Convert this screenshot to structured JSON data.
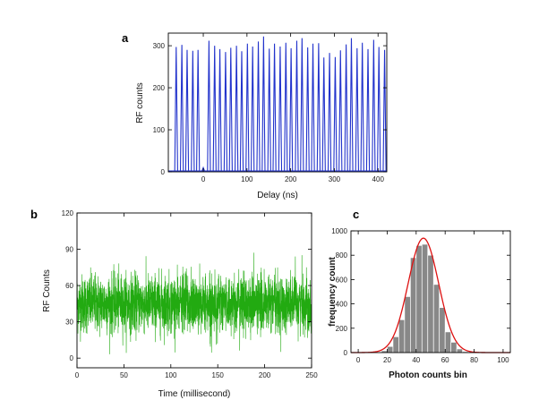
{
  "chart_data": [
    {
      "panel_label": "a",
      "type": "line",
      "xlabel": "Delay (ns)",
      "ylabel": "RF counts",
      "xlim": [
        -80,
        420
      ],
      "ylim": [
        0,
        330
      ],
      "xticks": [
        0,
        100,
        200,
        300,
        400
      ],
      "yticks": [
        0,
        100,
        200,
        300
      ],
      "series": [
        {
          "color": "#2233cc",
          "peak_x": [
            -62,
            -49,
            -37,
            -24,
            -12,
            13,
            26,
            38,
            51,
            63,
            76,
            88,
            101,
            113,
            126,
            138,
            151,
            163,
            176,
            189,
            201,
            214,
            226,
            239,
            251,
            264,
            276,
            289,
            302,
            314,
            327,
            339,
            352,
            364,
            377,
            390,
            402,
            415
          ],
          "peak_y": [
            297,
            302,
            290,
            288,
            290,
            312,
            300,
            292,
            285,
            295,
            300,
            287,
            305,
            298,
            310,
            322,
            293,
            305,
            298,
            307,
            294,
            312,
            318,
            296,
            305,
            306,
            272,
            283,
            273,
            289,
            303,
            318,
            294,
            307,
            292,
            314,
            297,
            290
          ],
          "central_peak_x": 0,
          "central_peak_y": 10
        }
      ]
    },
    {
      "panel_label": "b",
      "type": "line",
      "xlabel": "Time (millisecond)",
      "ylabel": "RF Counts",
      "xlim": [
        0,
        250
      ],
      "ylim": [
        -8,
        120
      ],
      "xticks": [
        0,
        50,
        100,
        150,
        200,
        250
      ],
      "yticks": [
        0,
        30,
        60,
        90,
        120
      ],
      "series": [
        {
          "color": "#22aa11",
          "mean": 45,
          "std": 12,
          "min": 3,
          "max": 93,
          "n_points": 2500
        }
      ]
    },
    {
      "panel_label": "c",
      "type": "bar",
      "xlabel": "Photon counts bin",
      "ylabel": "frequency count",
      "xlim": [
        -5,
        105
      ],
      "ylim": [
        0,
        1000
      ],
      "xticks": [
        0,
        20,
        40,
        60,
        80,
        100
      ],
      "yticks": [
        0,
        200,
        400,
        600,
        800,
        1000
      ],
      "bin_width": 4,
      "bins": [
        10,
        14,
        18,
        22,
        26,
        30,
        34,
        38,
        42,
        46,
        50,
        54,
        58,
        62,
        66,
        70,
        74,
        78
      ],
      "values": [
        2,
        5,
        15,
        50,
        130,
        270,
        460,
        780,
        880,
        890,
        800,
        560,
        370,
        170,
        85,
        30,
        8,
        2
      ],
      "bar_color": "#888888",
      "fit": {
        "type": "gaussian",
        "color": "#dd1111",
        "amplitude": 940,
        "center": 45,
        "sigma": 10.5
      }
    }
  ]
}
